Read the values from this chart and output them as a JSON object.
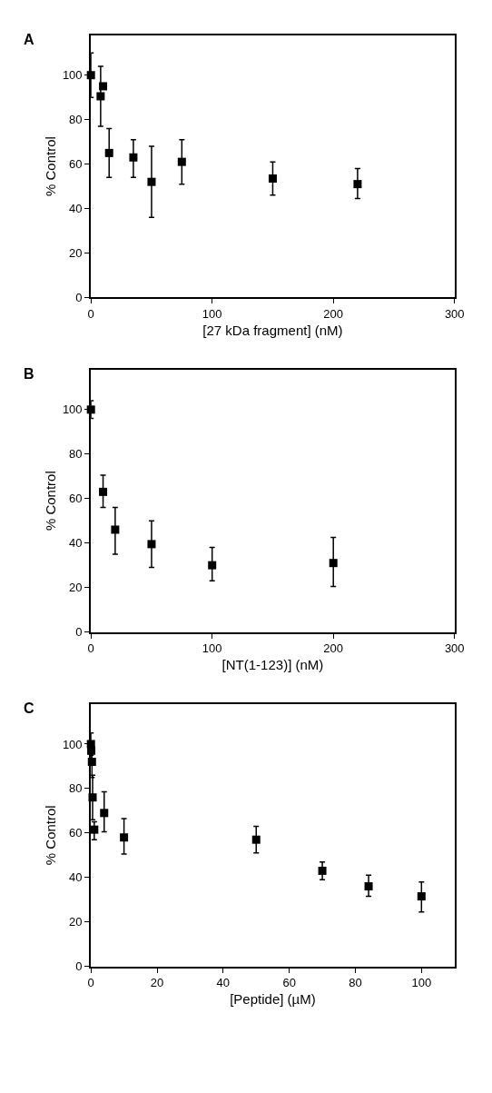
{
  "chart_data": [
    {
      "type": "scatter",
      "title": "A",
      "xlabel": "[27 kDa fragment] (nM)",
      "ylabel": "% Control",
      "color": "#000000",
      "marker": "square",
      "xlim": [
        0,
        300
      ],
      "xticks": [
        0,
        100,
        200,
        300
      ],
      "ylim": [
        0,
        118
      ],
      "yticks": [
        0,
        20,
        40,
        60,
        80,
        100
      ],
      "x": [
        0,
        8,
        10,
        15,
        35,
        50,
        75,
        150,
        220
      ],
      "values": [
        100,
        90.5,
        95,
        65,
        63,
        52,
        61,
        53.5,
        51
      ],
      "errors": [
        10,
        [
          77,
          104
        ],
        null,
        [
          54,
          76
        ],
        [
          54,
          71
        ],
        [
          36,
          68
        ],
        [
          51,
          71
        ],
        [
          46,
          61
        ],
        [
          44.5,
          58
        ]
      ]
    },
    {
      "type": "scatter",
      "title": "B",
      "xlabel": "[NT(1-123)] (nM)",
      "ylabel": "% Control",
      "color": "#000000",
      "marker": "square",
      "xlim": [
        0,
        300
      ],
      "xticks": [
        0,
        100,
        200,
        300
      ],
      "ylim": [
        0,
        118
      ],
      "yticks": [
        0,
        20,
        40,
        60,
        80,
        100
      ],
      "x": [
        0,
        10,
        20,
        50,
        100,
        200
      ],
      "values": [
        100,
        63,
        46,
        39.5,
        30,
        31
      ],
      "errors": [
        4,
        [
          56,
          70.5
        ],
        [
          35,
          56
        ],
        [
          29,
          50
        ],
        [
          23,
          38
        ],
        [
          20.5,
          42.5
        ]
      ]
    },
    {
      "type": "scatter",
      "title": "C",
      "xlabel": "[Peptide] (µM)",
      "ylabel": "% Control",
      "color": "#000000",
      "marker": "square",
      "xlim": [
        0,
        110
      ],
      "xticks": [
        0,
        20,
        40,
        60,
        80,
        100
      ],
      "ylim": [
        0,
        118
      ],
      "yticks": [
        0,
        20,
        40,
        60,
        80,
        100
      ],
      "x": [
        0,
        0.1,
        0.3,
        0.5,
        1,
        4,
        10,
        50,
        70,
        84,
        100
      ],
      "values": [
        100,
        97,
        92,
        76,
        61.5,
        69,
        58,
        57,
        43,
        36,
        31.5
      ],
      "errors": [
        5,
        [
          93,
          101
        ],
        [
          85,
          99
        ],
        [
          66,
          86
        ],
        [
          57,
          65
        ],
        [
          60.5,
          78.5
        ],
        [
          50.5,
          66.5
        ],
        [
          51,
          63
        ],
        [
          39,
          47
        ],
        [
          31.5,
          41
        ],
        [
          24.5,
          38
        ]
      ]
    }
  ]
}
